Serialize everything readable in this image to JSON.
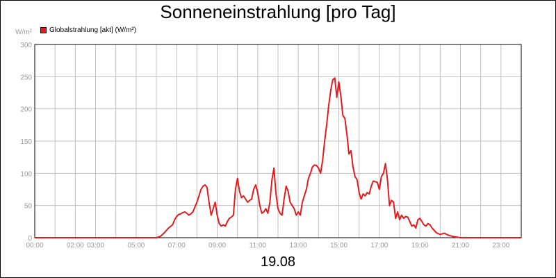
{
  "chart_data": {
    "type": "line",
    "title": "Sonneneinstrahlung [pro Tag]",
    "xlabel": "19.08",
    "ylabel": "W/m²",
    "ylim": [
      0,
      300
    ],
    "xlim_hours": [
      0,
      24
    ],
    "y_ticks": [
      "0",
      "50",
      "100",
      "150",
      "200",
      "250",
      "300"
    ],
    "y_tick_values": [
      0,
      50,
      100,
      150,
      200,
      250,
      300
    ],
    "x_ticks": [
      "00:00",
      "02:00",
      "03:00",
      "05:00",
      "07:00",
      "09:00",
      "11:00",
      "13:00",
      "15:00",
      "17:00",
      "19:00",
      "21:00",
      "23:00"
    ],
    "x_tick_hours": [
      0,
      2,
      3,
      5,
      7,
      9,
      11,
      13,
      15,
      17,
      19,
      21,
      23
    ],
    "grid": true,
    "legend_position": "top-left",
    "series": [
      {
        "name": "Globalstrahlung [akt] (W/m²)",
        "color": "#e41a1c",
        "x": [
          0,
          6.0,
          6.2,
          6.4,
          6.6,
          6.8,
          6.9,
          7.0,
          7.1,
          7.2,
          7.3,
          7.4,
          7.5,
          7.6,
          7.7,
          7.8,
          8.0,
          8.1,
          8.2,
          8.3,
          8.4,
          8.5,
          8.6,
          8.7,
          8.8,
          8.9,
          9.0,
          9.1,
          9.2,
          9.3,
          9.4,
          9.5,
          9.6,
          9.7,
          9.8,
          9.9,
          10.0,
          10.1,
          10.2,
          10.3,
          10.4,
          10.5,
          10.6,
          10.7,
          10.8,
          10.9,
          11.0,
          11.1,
          11.2,
          11.3,
          11.4,
          11.5,
          11.6,
          11.7,
          11.8,
          11.9,
          12.0,
          12.1,
          12.2,
          12.3,
          12.4,
          12.5,
          12.6,
          12.7,
          12.8,
          12.9,
          13.0,
          13.1,
          13.2,
          13.3,
          13.4,
          13.5,
          13.6,
          13.7,
          13.8,
          13.9,
          14.0,
          14.1,
          14.2,
          14.3,
          14.4,
          14.5,
          14.6,
          14.7,
          14.8,
          14.9,
          15.0,
          15.1,
          15.2,
          15.3,
          15.4,
          15.5,
          15.6,
          15.7,
          15.8,
          15.9,
          16.0,
          16.1,
          16.2,
          16.3,
          16.4,
          16.5,
          16.6,
          16.7,
          16.8,
          16.9,
          17.0,
          17.1,
          17.2,
          17.3,
          17.4,
          17.5,
          17.6,
          17.7,
          17.8,
          17.9,
          18.0,
          18.1,
          18.2,
          18.3,
          18.4,
          18.5,
          18.6,
          18.7,
          18.8,
          18.9,
          19.0,
          19.1,
          19.2,
          19.3,
          19.4,
          19.5,
          19.6,
          19.8,
          20.0,
          20.2,
          20.4,
          20.6,
          20.8,
          21.0,
          24
        ],
        "values": [
          0,
          0,
          2,
          8,
          15,
          20,
          28,
          33,
          36,
          37,
          39,
          40,
          38,
          35,
          37,
          40,
          55,
          65,
          75,
          80,
          82,
          78,
          55,
          35,
          45,
          55,
          35,
          22,
          18,
          20,
          18,
          25,
          30,
          32,
          35,
          75,
          92,
          72,
          62,
          65,
          60,
          55,
          58,
          60,
          75,
          82,
          70,
          50,
          38,
          40,
          45,
          38,
          55,
          90,
          108,
          68,
          45,
          38,
          35,
          60,
          80,
          72,
          55,
          50,
          45,
          35,
          40,
          35,
          55,
          65,
          75,
          92,
          100,
          110,
          113,
          112,
          108,
          100,
          120,
          150,
          175,
          205,
          228,
          245,
          248,
          218,
          242,
          220,
          190,
          185,
          160,
          130,
          135,
          110,
          95,
          90,
          70,
          60,
          68,
          65,
          70,
          68,
          80,
          88,
          87,
          86,
          75,
          95,
          100,
          115,
          90,
          50,
          58,
          55,
          30,
          40,
          28,
          35,
          30,
          33,
          32,
          25,
          18,
          20,
          15,
          28,
          30,
          25,
          20,
          18,
          22,
          20,
          15,
          8,
          5,
          7,
          4,
          2,
          1,
          0,
          0
        ]
      }
    ]
  }
}
